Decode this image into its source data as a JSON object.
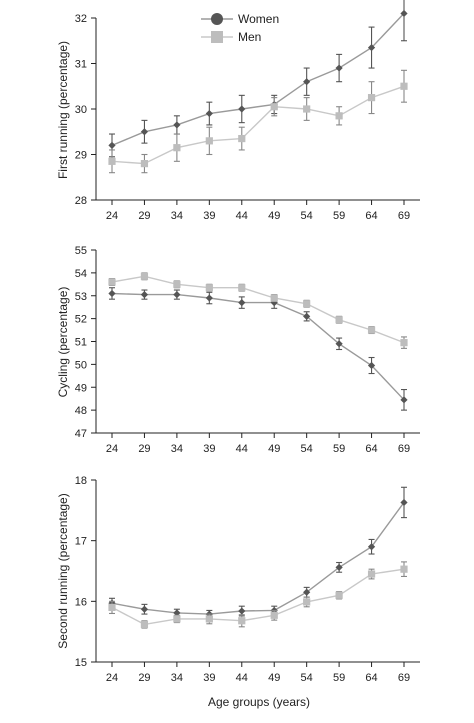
{
  "legend": [
    {
      "name": "Women",
      "color": "#9a9a9a",
      "marker_color": "#555555",
      "marker": "diamond"
    },
    {
      "name": "Men",
      "color": "#c8c8c8",
      "marker_color": "#bdbdbd",
      "marker": "square"
    }
  ],
  "chart_data": [
    {
      "type": "line",
      "title": "",
      "xlabel": "",
      "ylabel": "First running (percentage)",
      "x": [
        "24",
        "29",
        "34",
        "39",
        "44",
        "49",
        "54",
        "59",
        "64",
        "69"
      ],
      "ylim": [
        28,
        32
      ],
      "yticks": [
        28,
        29,
        30,
        31,
        32
      ],
      "grid": false,
      "legend": "top-center",
      "series": [
        {
          "name": "Women",
          "values": [
            29.2,
            29.5,
            29.65,
            29.9,
            30.0,
            30.1,
            30.6,
            30.9,
            31.35,
            32.1
          ],
          "errors": [
            0.25,
            0.25,
            0.2,
            0.25,
            0.3,
            0.2,
            0.3,
            0.3,
            0.45,
            0.6
          ]
        },
        {
          "name": "Men",
          "values": [
            28.85,
            28.8,
            29.15,
            29.3,
            29.35,
            30.05,
            30.0,
            29.85,
            30.25,
            30.5
          ],
          "errors": [
            0.25,
            0.2,
            0.3,
            0.3,
            0.25,
            0.2,
            0.25,
            0.2,
            0.35,
            0.35
          ]
        }
      ]
    },
    {
      "type": "line",
      "title": "",
      "xlabel": "",
      "ylabel": "Cycling (percentage)",
      "x": [
        "24",
        "29",
        "34",
        "39",
        "44",
        "49",
        "54",
        "59",
        "64",
        "69"
      ],
      "ylim": [
        47,
        55
      ],
      "yticks": [
        47,
        48,
        49,
        50,
        51,
        52,
        53,
        54,
        55
      ],
      "grid": false,
      "series": [
        {
          "name": "Women",
          "values": [
            53.1,
            53.05,
            53.05,
            52.9,
            52.7,
            52.7,
            52.1,
            50.9,
            49.95,
            48.45
          ],
          "errors": [
            0.25,
            0.2,
            0.2,
            0.25,
            0.25,
            0.25,
            0.2,
            0.25,
            0.35,
            0.45
          ]
        },
        {
          "name": "Men",
          "values": [
            53.6,
            53.85,
            53.5,
            53.35,
            53.35,
            52.9,
            52.65,
            51.95,
            51.5,
            50.95
          ],
          "errors": [
            0.15,
            0.15,
            0.15,
            0.15,
            0.15,
            0.15,
            0.15,
            0.15,
            0.15,
            0.25
          ]
        }
      ]
    },
    {
      "type": "line",
      "title": "",
      "xlabel": "Age groups (years)",
      "ylabel": "Second running (percentage)",
      "x": [
        "24",
        "29",
        "34",
        "39",
        "44",
        "49",
        "54",
        "59",
        "64",
        "69"
      ],
      "ylim": [
        15,
        18
      ],
      "yticks": [
        15,
        16,
        17,
        18
      ],
      "grid": false,
      "series": [
        {
          "name": "Women",
          "values": [
            15.97,
            15.87,
            15.81,
            15.79,
            15.84,
            15.85,
            16.15,
            16.56,
            16.9,
            17.63
          ],
          "errors": [
            0.08,
            0.08,
            0.06,
            0.06,
            0.08,
            0.07,
            0.08,
            0.08,
            0.12,
            0.25
          ]
        },
        {
          "name": "Men",
          "values": [
            15.9,
            15.62,
            15.71,
            15.71,
            15.68,
            15.77,
            15.99,
            16.1,
            16.45,
            16.53
          ],
          "errors": [
            0.1,
            0.06,
            0.06,
            0.08,
            0.1,
            0.08,
            0.08,
            0.06,
            0.08,
            0.12
          ]
        }
      ]
    }
  ]
}
